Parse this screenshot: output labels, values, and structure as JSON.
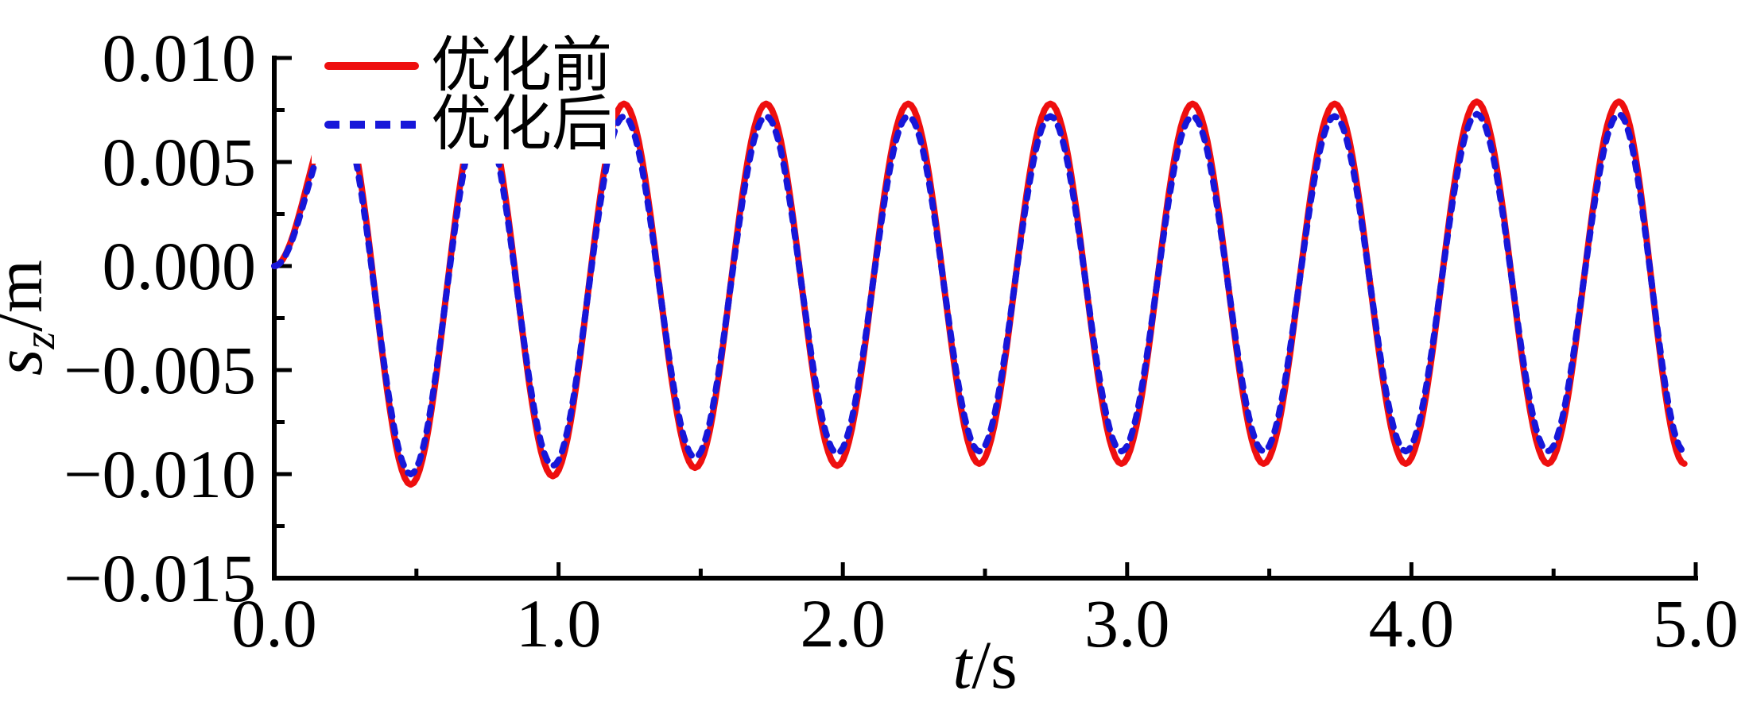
{
  "figure": {
    "background": "#ffffff",
    "text_color": "#000000",
    "axis_color": "#000000"
  },
  "legend": {
    "items": [
      {
        "label": "优化前",
        "color": "#ee0f0f",
        "style": "solid"
      },
      {
        "label": "优化后",
        "color": "#1717d9",
        "style": "dashed"
      }
    ]
  },
  "chart_data": {
    "type": "line",
    "title": "",
    "xlabel": {
      "symbol": "t",
      "unit": "/s"
    },
    "ylabel": {
      "symbol": "s",
      "subscript": "z",
      "unit": "/m"
    },
    "xlim": [
      0.0,
      5.0
    ],
    "ylim": [
      -0.015,
      0.01
    ],
    "grid": false,
    "legend_position": "upper-left-inside",
    "x_ticks": {
      "values": [
        0.0,
        1.0,
        2.0,
        3.0,
        4.0,
        5.0
      ],
      "labels": [
        "0.0",
        "1.0",
        "2.0",
        "3.0",
        "4.0",
        "5.0"
      ],
      "minor_values": [
        0.5,
        1.5,
        2.5,
        3.5,
        4.5
      ]
    },
    "y_ticks": {
      "values": [
        0.01,
        0.005,
        0.0,
        -0.005,
        -0.01,
        -0.015
      ],
      "labels": [
        "0.010",
        "0.005",
        "0.000",
        "−0.005",
        "−0.010",
        "−0.015"
      ],
      "minor_values": [
        0.0075,
        0.0025,
        -0.0025,
        -0.0075,
        -0.0125
      ]
    },
    "waveform_note": "Both curves start at s=0 at t=0, oscillate with period ~0.5 s; first trough overshoots, then steady state. Keypoints are successive extrema; curve is half-cosine (sinusoidal) between them. First two peaks are hidden behind the legend box.",
    "series": [
      {
        "name": "优化前",
        "color": "#ee0f0f",
        "line": "solid",
        "line_width": 8,
        "keypoints_t": [
          0.0,
          0.23,
          0.48,
          0.73,
          0.98,
          1.23,
          1.48,
          1.73,
          1.98,
          2.23,
          2.48,
          2.73,
          2.98,
          3.23,
          3.48,
          3.73,
          3.98,
          4.23,
          4.48,
          4.73,
          4.96
        ],
        "keypoints_s": [
          0.0,
          0.0078,
          -0.0105,
          0.0078,
          -0.0101,
          0.0078,
          -0.0097,
          0.0078,
          -0.0096,
          0.0078,
          -0.0095,
          0.0078,
          -0.0095,
          0.0078,
          -0.0095,
          0.0078,
          -0.0095,
          0.0079,
          -0.0095,
          0.0079,
          -0.0095
        ]
      },
      {
        "name": "优化后",
        "color": "#1717d9",
        "line": "dashed",
        "line_width": 8,
        "dash": [
          10,
          11
        ],
        "keypoints_t": [
          0.0,
          0.23,
          0.48,
          0.73,
          0.98,
          1.23,
          1.48,
          1.73,
          1.98,
          2.23,
          2.48,
          2.73,
          2.98,
          3.23,
          3.48,
          3.73,
          3.98,
          4.23,
          4.48,
          4.73,
          4.96
        ],
        "keypoints_s": [
          0.0,
          0.0072,
          -0.01,
          0.0072,
          -0.0096,
          0.0072,
          -0.0092,
          0.0072,
          -0.009,
          0.0072,
          -0.0089,
          0.0072,
          -0.0089,
          0.0072,
          -0.0089,
          0.0072,
          -0.0089,
          0.0073,
          -0.0089,
          0.0073,
          -0.0089
        ]
      }
    ]
  }
}
